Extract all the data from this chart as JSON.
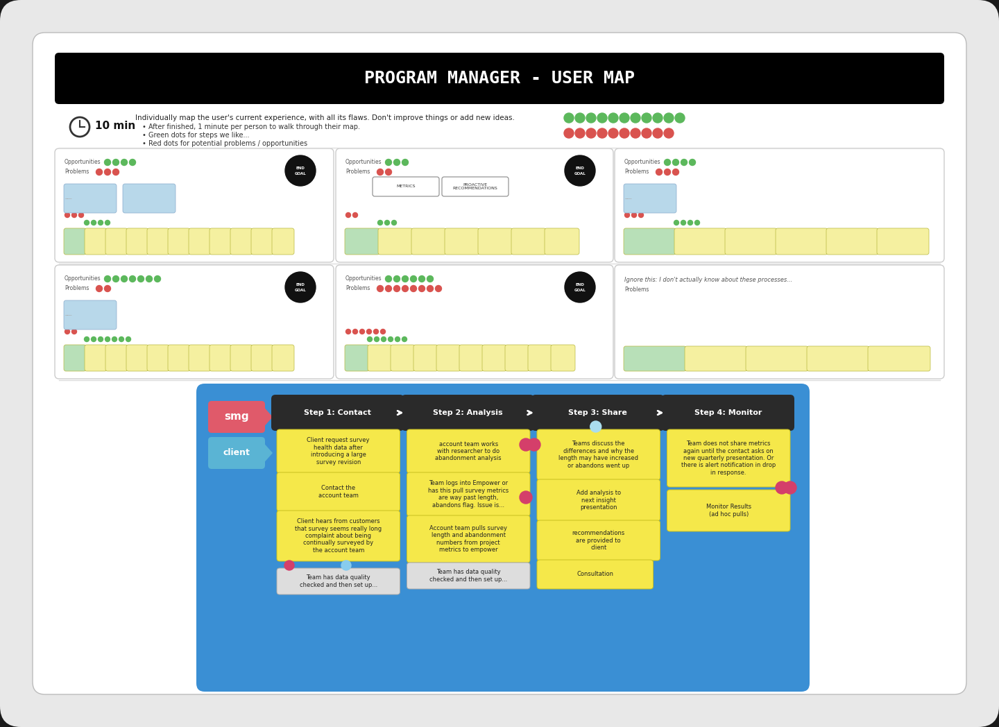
{
  "title": "PROGRAM MANAGER - USER MAP",
  "outer_bg": "#c8c8c8",
  "slide_bg": "#ffffff",
  "title_bg": "#000000",
  "title_color": "#ffffff",
  "title_fontsize": 18,
  "instruction_text": "Individually map the user's current experience, with all its flaws. Don't improve things or add new ideas.",
  "bullets": [
    "After finished, 1 minute per person to walk through their map.",
    "Green dots for steps we like...",
    "Red dots for potential problems / opportunities"
  ],
  "timer_minutes": "10 min",
  "green_dots_count": 11,
  "red_dots_count": 10,
  "green_dot_color": "#5cb85c",
  "red_dot_color": "#d9534f",
  "card_bg": "#ffffff",
  "card_ec": "#cccccc",
  "sticky_yellow": "#f5f0a0",
  "sticky_green_user": "#b8e0b8",
  "sticky_blue": "#b8d8ea",
  "participant_cards": [
    {
      "col": 0,
      "row": 0,
      "opp_dots": 4,
      "prob_dots": 3,
      "has_end_goal": true,
      "n_steps": 11,
      "has_label_boxes": false,
      "notes_below": true,
      "note_count": 2
    },
    {
      "col": 1,
      "row": 0,
      "opp_dots": 3,
      "prob_dots": 2,
      "has_end_goal": true,
      "n_steps": 7,
      "has_label_boxes": true,
      "label_texts": [
        "METRICS",
        "PROACTIVE\nRECOMMENDATIONS"
      ],
      "notes_below": false,
      "note_count": 0
    },
    {
      "col": 2,
      "row": 0,
      "opp_dots": 4,
      "prob_dots": 3,
      "has_end_goal": false,
      "n_steps": 6,
      "has_label_boxes": false,
      "notes_below": true,
      "note_count": 1
    },
    {
      "col": 0,
      "row": 1,
      "opp_dots": 7,
      "prob_dots": 2,
      "has_end_goal": true,
      "n_steps": 11,
      "has_label_boxes": false,
      "notes_below": true,
      "note_count": 1
    },
    {
      "col": 1,
      "row": 1,
      "opp_dots": 6,
      "prob_dots": 8,
      "has_end_goal": true,
      "n_steps": 10,
      "has_label_boxes": false,
      "notes_below": false,
      "note_count": 0
    },
    {
      "col": 2,
      "row": 1,
      "opp_dots": 0,
      "prob_dots": 0,
      "has_end_goal": false,
      "n_steps": 5,
      "has_label_boxes": false,
      "notes_below": false,
      "note_count": 0,
      "italic_title": "Ignore this: I don't actually know about these processes...",
      "no_opp_row": true
    }
  ],
  "bottom_diagram": {
    "bg_color": "#3a8fd4",
    "smg_color": "#e05a6a",
    "client_color": "#5ab4d4",
    "step_headers": [
      "Step 1: Contact",
      "Step 2: Analysis",
      "Step 3: Share",
      "Step 4: Monitor"
    ],
    "header_bg": "#2a2a2a",
    "note_yellow": "#f5e84a",
    "note_white": "#f0f0f0"
  }
}
